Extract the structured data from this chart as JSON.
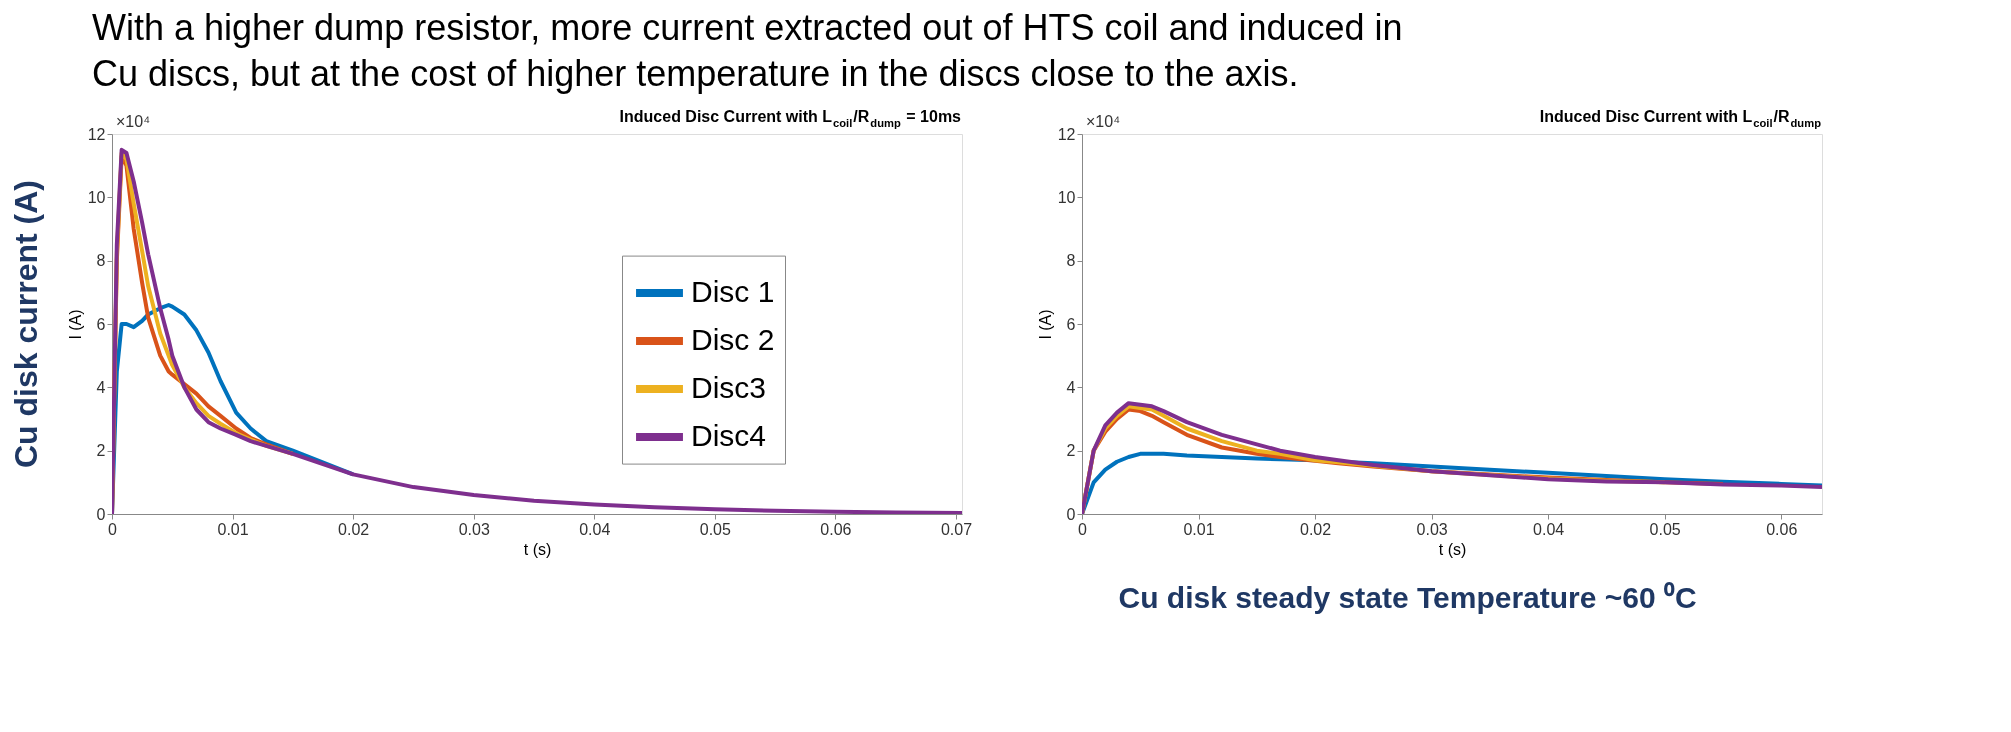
{
  "chart_data": [
    {
      "type": "line",
      "title": "Induced Disc Current with L$_{coil}$/R$_{dump}$ = 10ms",
      "xlabel": "t (s)",
      "ylabel": "I (A)",
      "annotations": [
        "With a higher dump resistor, more current extracted out of HTS coil and induced in Cu discs, but at the cost of higher temperature in the discs close to the axis.",
        "Cu disk current (A)",
        "×10⁴"
      ],
      "xlim": [
        0,
        0.0705
      ],
      "xticks": [
        0,
        0.01,
        0.02,
        0.03,
        0.04,
        0.05,
        0.06,
        0.07
      ],
      "ylim": [
        0,
        12
      ],
      "yticks": [
        0,
        2,
        4,
        6,
        8,
        10,
        12
      ],
      "grid": false,
      "legend": "right",
      "line_style": "solid",
      "marker": "none",
      "x": [
        0,
        0.0004,
        0.0008,
        0.0012,
        0.0018,
        0.0025,
        0.003,
        0.004,
        0.0047,
        0.005,
        0.006,
        0.007,
        0.008,
        0.009,
        0.0103,
        0.0115,
        0.0128,
        0.015,
        0.02,
        0.025,
        0.03,
        0.035,
        0.04,
        0.045,
        0.05,
        0.055,
        0.06,
        0.065,
        0.0705
      ],
      "series": [
        {
          "name": "Disc 1",
          "color": "#0072bd",
          "values": [
            0,
            4.5,
            6.0,
            6.0,
            5.9,
            6.1,
            6.3,
            6.5,
            6.6,
            6.55,
            6.3,
            5.8,
            5.1,
            4.2,
            3.2,
            2.7,
            2.3,
            2.0,
            1.25,
            null,
            null,
            null,
            null,
            null,
            null,
            null,
            null,
            null,
            null
          ]
        },
        {
          "name": "Disc 2",
          "color": "#d95319",
          "values": [
            0,
            8.0,
            11.3,
            11.0,
            9.0,
            7.3,
            6.2,
            5.0,
            4.5,
            4.4,
            4.1,
            3.8,
            3.4,
            3.1,
            2.7,
            2.4,
            2.2,
            1.9,
            null,
            null,
            null,
            null,
            null,
            null,
            null,
            null,
            null,
            null,
            null
          ]
        },
        {
          "name": "Disc3",
          "color": "#edb120",
          "values": [
            0,
            8.2,
            11.4,
            11.2,
            9.8,
            8.3,
            7.2,
            5.7,
            5.0,
            4.7,
            4.0,
            3.5,
            3.1,
            2.85,
            2.55,
            2.35,
            2.15,
            1.9,
            null,
            null,
            null,
            null,
            null,
            null,
            null,
            null,
            null,
            null,
            null
          ]
        },
        {
          "name": "Disc4",
          "color": "#7e2f8e",
          "values": [
            0,
            8.5,
            11.5,
            11.4,
            10.5,
            9.2,
            8.2,
            6.5,
            5.5,
            5.0,
            4.0,
            3.3,
            2.9,
            2.7,
            2.5,
            2.3,
            2.15,
            1.9,
            1.25,
            0.85,
            0.6,
            0.42,
            0.3,
            0.21,
            0.15,
            0.1,
            0.07,
            0.05,
            0.03
          ]
        }
      ]
    },
    {
      "type": "line",
      "title": "Induced Disc Current with L$_{coil}$/R$_{dump}$",
      "xlabel": "t (s)",
      "ylabel": "I (A)",
      "annotations": [
        "Cu disk steady state Temperature ~60 ⁰C",
        "×10⁴"
      ],
      "xlim": [
        0,
        0.0635
      ],
      "xticks": [
        0,
        0.01,
        0.02,
        0.03,
        0.04,
        0.05,
        0.06
      ],
      "ylim": [
        0,
        12
      ],
      "yticks": [
        0,
        2,
        4,
        6,
        8,
        10,
        12
      ],
      "grid": false,
      "legend": false,
      "line_style": "solid",
      "marker": "none",
      "x": [
        0,
        0.001,
        0.002,
        0.003,
        0.004,
        0.005,
        0.006,
        0.007,
        0.009,
        0.012,
        0.015,
        0.017,
        0.02,
        0.022,
        0.025,
        0.03,
        0.035,
        0.04,
        0.045,
        0.05,
        0.055,
        0.06,
        0.0635
      ],
      "series": [
        {
          "color": "#0072bd",
          "values": [
            0,
            1.0,
            1.4,
            1.65,
            1.8,
            1.9,
            1.9,
            1.9,
            1.85,
            1.8,
            1.75,
            1.73,
            1.7,
            1.65,
            1.6,
            1.5,
            1.4,
            1.3,
            1.2,
            1.1,
            1.02,
            0.95,
            0.9
          ]
        },
        {
          "color": "#d95319",
          "values": [
            0,
            2.0,
            2.6,
            3.0,
            3.3,
            3.25,
            3.1,
            2.9,
            2.5,
            2.1,
            1.9,
            1.8,
            1.68,
            1.6,
            1.5,
            1.35,
            1.25,
            1.15,
            1.07,
            1.0,
            0.95,
            null,
            null
          ]
        },
        {
          "color": "#edb120",
          "values": [
            0,
            2.0,
            2.7,
            3.1,
            3.4,
            3.35,
            3.3,
            3.1,
            2.7,
            2.3,
            2.0,
            1.9,
            1.7,
            1.63,
            1.52,
            1.35,
            1.23,
            1.12,
            1.05,
            1.0,
            null,
            null,
            null
          ]
        },
        {
          "color": "#7e2f8e",
          "values": [
            0,
            2.0,
            2.8,
            3.2,
            3.5,
            3.45,
            3.4,
            3.25,
            2.9,
            2.5,
            2.2,
            2.0,
            1.8,
            1.7,
            1.55,
            1.35,
            1.22,
            1.1,
            1.03,
            1.0,
            0.93,
            0.9,
            0.85
          ]
        }
      ]
    }
  ]
}
